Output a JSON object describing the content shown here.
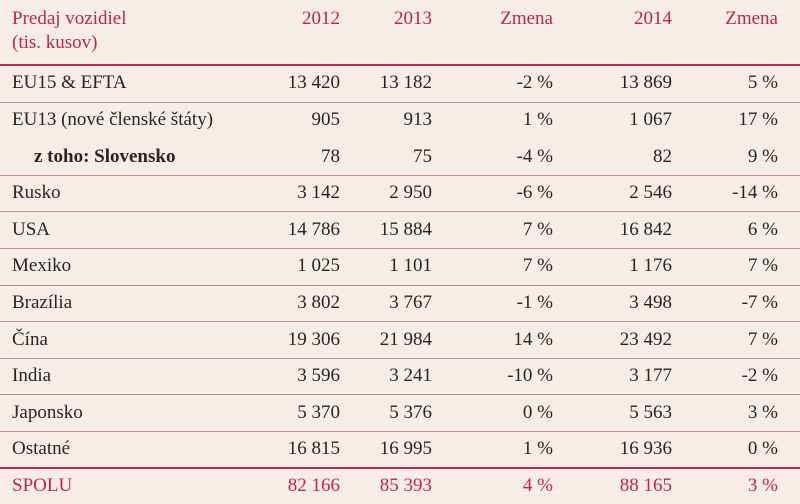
{
  "table": {
    "header": [
      [
        "Predaj vozidiel",
        "(tis. kusov)"
      ],
      "2012",
      "2013",
      "Zmena",
      "2014",
      "Zmena"
    ],
    "rows": [
      [
        "EU15 & EFTA",
        "13 420",
        "13 182",
        "-2 %",
        "13 869",
        "5 %"
      ],
      [
        "EU13 (nové členské štáty)",
        "905",
        "913",
        "1 %",
        "1 067",
        "17 %"
      ],
      [
        "z toho: Slovensko",
        "78",
        "75",
        "-4 %",
        "82",
        "9 %"
      ],
      [
        "Rusko",
        "3 142",
        "2 950",
        "-6 %",
        "2 546",
        "-14 %"
      ],
      [
        "USA",
        "14 786",
        "15 884",
        "7 %",
        "16 842",
        "6 %"
      ],
      [
        "Mexiko",
        "1 025",
        "1 101",
        "7 %",
        "1 176",
        "7 %"
      ],
      [
        "Brazília",
        "3 802",
        "3 767",
        "-1 %",
        "3 498",
        "-7 %"
      ],
      [
        "Čína",
        "19 306",
        "21 984",
        "14 %",
        "23 492",
        "7 %"
      ],
      [
        "India",
        "3 596",
        "3 241",
        "-10 %",
        "3 177",
        "-2 %"
      ],
      [
        "Japonsko",
        "5 370",
        "5 376",
        "0 %",
        "5 563",
        "3 %"
      ],
      [
        "Ostatné",
        "16 815",
        "16 995",
        "1 %",
        "16 936",
        "0 %"
      ],
      [
        "SPOLU",
        "82 166",
        "85 393",
        "4 %",
        "88 165",
        "3 %"
      ]
    ]
  }
}
